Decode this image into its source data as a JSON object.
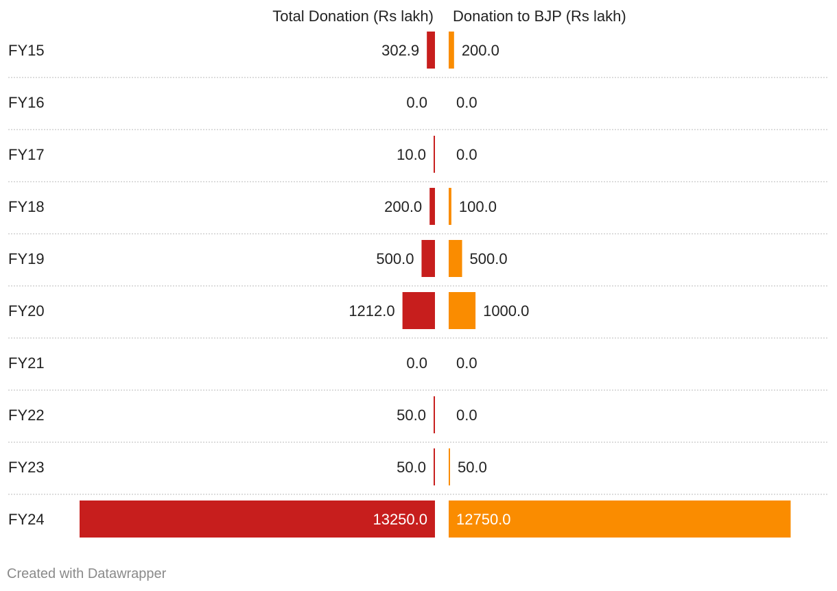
{
  "chart_data": {
    "type": "bar",
    "layout": "split-bars",
    "categories": [
      "FY15",
      "FY16",
      "FY17",
      "FY18",
      "FY19",
      "FY20",
      "FY21",
      "FY22",
      "FY23",
      "FY24"
    ],
    "series": [
      {
        "name": "Total Donation (Rs lakh)",
        "values": [
          302.9,
          0.0,
          10.0,
          200.0,
          500.0,
          1212.0,
          0.0,
          50.0,
          50.0,
          13250.0
        ],
        "labels": [
          "302.9",
          "0.0",
          "10.0",
          "200.0",
          "500.0",
          "1212.0",
          "0.0",
          "50.0",
          "50.0",
          "13250.0"
        ],
        "color": "#c71e1d"
      },
      {
        "name": "Donation to BJP (Rs lakh)",
        "values": [
          200.0,
          0.0,
          0.0,
          100.0,
          500.0,
          1000.0,
          0.0,
          0.0,
          50.0,
          12750.0
        ],
        "labels": [
          "200.0",
          "0.0",
          "0.0",
          "100.0",
          "500.0",
          "1000.0",
          "0.0",
          "0.0",
          "50.0",
          "12750.0"
        ],
        "color": "#fa8c00"
      }
    ],
    "xlim": [
      0,
      13250
    ],
    "grid": "dotted row separators"
  },
  "footer": {
    "text": "Created with Datawrapper"
  }
}
